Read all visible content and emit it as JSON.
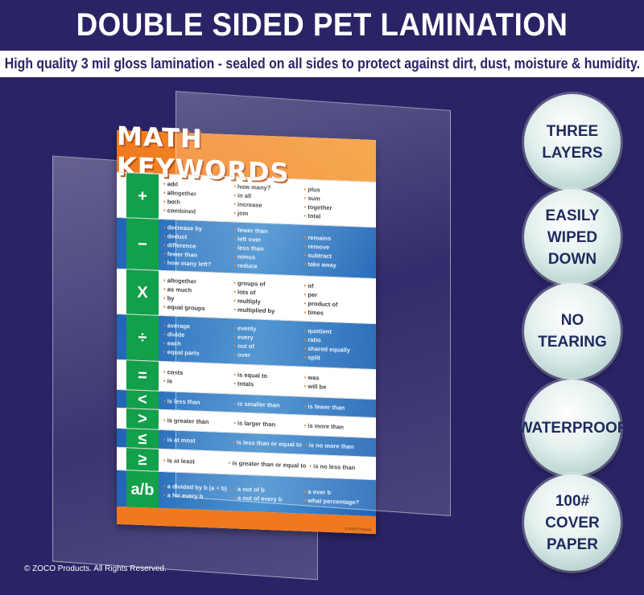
{
  "header": {
    "title": "DOUBLE SIDED PET LAMINATION",
    "subtitle": "High quality 3 mil gloss lamination - sealed on all sides to protect against dirt, dust, moisture & humidity."
  },
  "poster": {
    "title": "MATH KEYWORDS",
    "footer": "© ZOCO Products",
    "colors": {
      "header": "#f0791f",
      "symbol": "#12a04a",
      "blue": "#1f64b6"
    },
    "rows": [
      {
        "symbol": "+",
        "blue": false,
        "cols": [
          [
            "add",
            "altogether",
            "both",
            "combined"
          ],
          [
            "how many?",
            "in all",
            "increase",
            "join"
          ],
          [
            "plus",
            "sum",
            "together",
            "total"
          ]
        ]
      },
      {
        "symbol": "−",
        "blue": true,
        "cols": [
          [
            "decrease by",
            "deduct",
            "difference",
            "fewer than",
            "how many left?"
          ],
          [
            "fewer than",
            "left over",
            "less than",
            "minus",
            "reduce"
          ],
          [
            "remains",
            "remove",
            "subtract",
            "take away"
          ]
        ]
      },
      {
        "symbol": "X",
        "blue": false,
        "cols": [
          [
            "altogether",
            "as much",
            "by",
            "equal groups"
          ],
          [
            "groups of",
            "lots of",
            "multiply",
            "multiplied by"
          ],
          [
            "of",
            "per",
            "product of",
            "times"
          ]
        ]
      },
      {
        "symbol": "÷",
        "blue": true,
        "cols": [
          [
            "average",
            "divide",
            "each",
            "equal parts"
          ],
          [
            "evenly",
            "every",
            "out of",
            "over"
          ],
          [
            "quotient",
            "ratio",
            "shared equally",
            "split"
          ]
        ]
      },
      {
        "symbol": "=",
        "blue": false,
        "cols": [
          [
            "costs",
            "is"
          ],
          [
            "is equal to",
            "totals"
          ],
          [
            "was",
            "will be"
          ]
        ]
      },
      {
        "symbol": "<",
        "blue": true,
        "cols": [
          [
            "is less than"
          ],
          [
            "is smaller than"
          ],
          [
            "is fewer than"
          ]
        ]
      },
      {
        "symbol": ">",
        "blue": false,
        "cols": [
          [
            "is greater than"
          ],
          [
            "is larger than"
          ],
          [
            "is more than"
          ]
        ]
      },
      {
        "symbol": "≤",
        "blue": true,
        "cols": [
          [
            "is at most"
          ],
          [
            "is less than or equal to"
          ],
          [
            "is no more than"
          ]
        ]
      },
      {
        "symbol": "≥",
        "blue": false,
        "cols": [
          [
            "is at least"
          ],
          [
            "is greater than or equal to"
          ],
          [
            "is no less than"
          ]
        ]
      },
      {
        "symbol": "a/b",
        "blue": true,
        "cols": [
          [
            "a divided by b (a ÷ b)",
            "a for every b"
          ],
          [
            "a out of b",
            "a out of every b"
          ],
          [
            "a over b",
            "what percentage?"
          ]
        ]
      }
    ]
  },
  "badges": [
    "THREE\nLAYERS",
    "EASILY\nWIPED DOWN",
    "NO\nTEARING",
    "WATERPROOF",
    "100#\nCOVER\nPAPER"
  ],
  "copyright": "© ZOCO Products. All Rights Reserved."
}
